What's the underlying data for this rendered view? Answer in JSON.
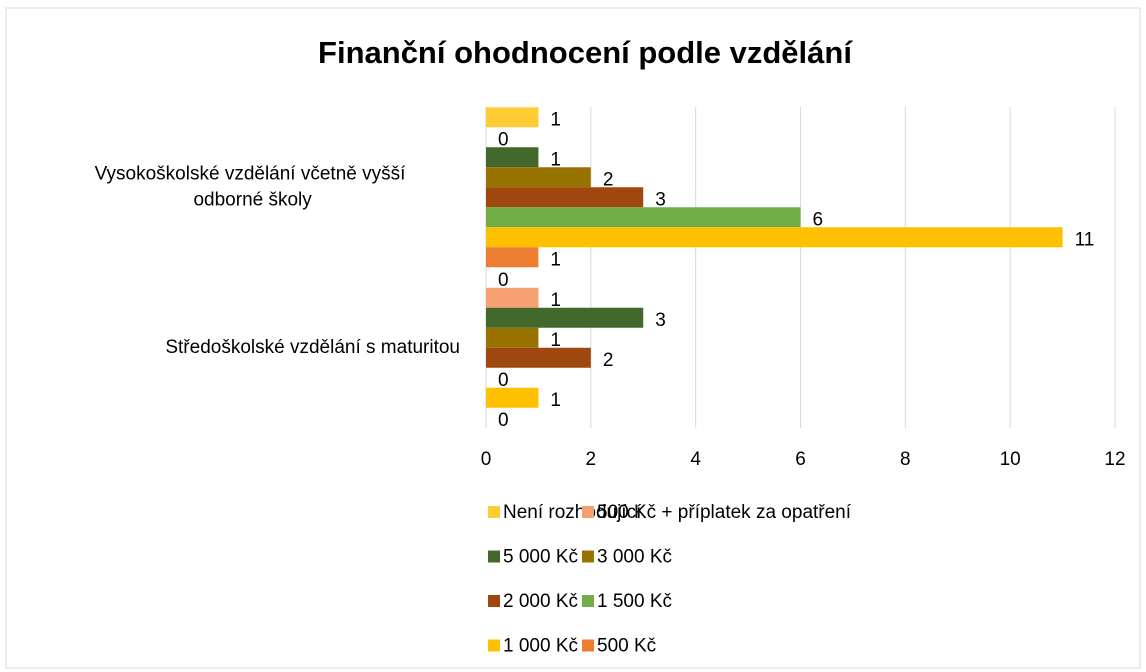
{
  "chart_data": {
    "type": "bar",
    "orientation": "horizontal",
    "title": "Finanční ohodnocení podle vzdělání",
    "categories": [
      "Vysokoškolské vzdělání včetně vyšší odborné školy",
      "Středoškolské vzdělání s maturitou"
    ],
    "series": [
      {
        "name": "Není rozhodující",
        "color": "#FFCD33",
        "values": [
          1,
          0
        ]
      },
      {
        "name": "500 Kč + příplatek za opatření",
        "color": "#F4A070",
        "values": [
          0,
          1
        ]
      },
      {
        "name": "5 000 Kč",
        "color": "#43682B",
        "values": [
          1,
          3
        ]
      },
      {
        "name": "3 000 Kč",
        "color": "#997300",
        "values": [
          2,
          1
        ]
      },
      {
        "name": "2 000 Kč",
        "color": "#9E480E",
        "values": [
          3,
          2
        ]
      },
      {
        "name": "1 500 Kč",
        "color": "#70AD47",
        "values": [
          6,
          0
        ]
      },
      {
        "name": "1 000 Kč",
        "color": "#FFC000",
        "values": [
          11,
          1
        ]
      },
      {
        "name": "500 Kč",
        "color": "#ED7D31",
        "values": [
          1,
          0
        ]
      }
    ],
    "xlim": [
      0,
      12
    ],
    "xticks": [
      0,
      2,
      4,
      6,
      8,
      10,
      12
    ],
    "grid": true,
    "legend": "bottom"
  }
}
